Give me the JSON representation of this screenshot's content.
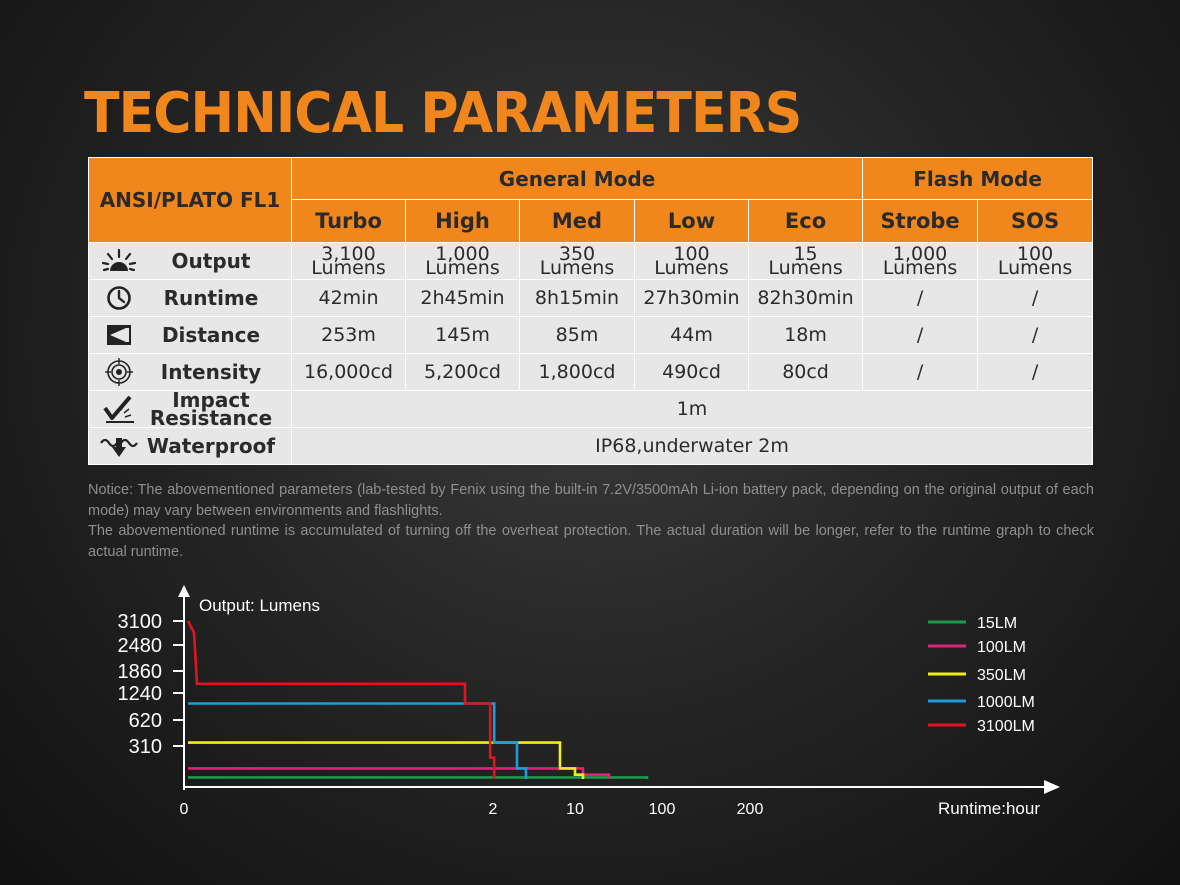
{
  "title": "TECHNICAL PARAMETERS",
  "table": {
    "corner": "ANSI/PLATO FL1",
    "group_general": "General Mode",
    "group_flash": "Flash Mode",
    "modes": [
      "Turbo",
      "High",
      "Med",
      "Low",
      "Eco",
      "Strobe",
      "SOS"
    ],
    "output": {
      "label": "Output",
      "values": [
        [
          "3,100",
          "Lumens"
        ],
        [
          "1,000",
          "Lumens"
        ],
        [
          "350",
          "Lumens"
        ],
        [
          "100",
          "Lumens"
        ],
        [
          "15",
          "Lumens"
        ],
        [
          "1,000",
          "Lumens"
        ],
        [
          "100",
          "Lumens"
        ]
      ]
    },
    "runtime": {
      "label": "Runtime",
      "values": [
        "42min",
        "2h45min",
        "8h15min",
        "27h30min",
        "82h30min",
        "/",
        "/"
      ]
    },
    "distance": {
      "label": "Distance",
      "values": [
        "253m",
        "145m",
        "85m",
        "44m",
        "18m",
        "/",
        "/"
      ]
    },
    "intensity": {
      "label": "Intensity",
      "values": [
        "16,000cd",
        "5,200cd",
        "1,800cd",
        "490cd",
        "80cd",
        "/",
        "/"
      ]
    },
    "impact": {
      "label_line1": "Impact",
      "label_line2": "Resistance",
      "value": "1m"
    },
    "waterproof": {
      "label": "Waterproof",
      "value": "IP68,underwater 2m"
    },
    "icons": {
      "output": "light-burst-icon",
      "runtime": "clock-icon",
      "distance": "beam-distance-icon",
      "intensity": "target-icon",
      "impact": "impact-drop-icon",
      "waterproof": "waterproof-icon"
    }
  },
  "notice": {
    "line1": "Notice: The abovementioned parameters (lab-tested by Fenix using the built-in 7.2V/3500mAh Li-ion battery pack, depending on the original output of each mode) may vary between environments and flashlights.",
    "line2": "The abovementioned runtime is accumulated of turning off the overheat protection. The actual duration will be longer, refer to the runtime graph to check actual runtime."
  },
  "chart_data": {
    "type": "line",
    "ylabel": "Output: Lumens",
    "xlabel": "Runtime:hour",
    "y_ticks": [
      "3100",
      "2480",
      "1860",
      "1240",
      "620",
      "310"
    ],
    "x_ticks": [
      "0",
      "2",
      "10",
      "100",
      "200"
    ],
    "x_scale": "non-linear (ticks 0, 2, 10, 100, 200)",
    "grid": false,
    "legend_position": "right",
    "series": [
      {
        "name": "15LM",
        "color": "#1a9a4a",
        "points": [
          [
            0,
            15
          ],
          [
            82.5,
            15
          ],
          [
            82.5,
            0
          ]
        ]
      },
      {
        "name": "100LM",
        "color": "#e0237a",
        "points": [
          [
            0,
            100
          ],
          [
            11,
            100
          ],
          [
            11,
            40
          ],
          [
            27.5,
            40
          ],
          [
            27.5,
            0
          ]
        ]
      },
      {
        "name": "350LM",
        "color": "#f2ec1c",
        "points": [
          [
            0,
            350
          ],
          [
            8,
            350
          ],
          [
            8,
            100
          ],
          [
            10,
            100
          ],
          [
            10,
            40
          ],
          [
            11,
            40
          ],
          [
            11,
            0
          ]
        ]
      },
      {
        "name": "1000LM",
        "color": "#1f9bd8",
        "points": [
          [
            0,
            1000
          ],
          [
            2.05,
            1000
          ],
          [
            2.05,
            350
          ],
          [
            3,
            350
          ],
          [
            3,
            100
          ],
          [
            4,
            100
          ],
          [
            4,
            0
          ]
        ]
      },
      {
        "name": "3100LM",
        "color": "#e0141e",
        "points": [
          [
            0,
            3100
          ],
          [
            0.1,
            2800
          ],
          [
            0.15,
            1500
          ],
          [
            1.5,
            1500
          ],
          [
            1.5,
            1000
          ],
          [
            1.95,
            1000
          ],
          [
            1.95,
            200
          ],
          [
            2.05,
            200
          ],
          [
            2.05,
            0
          ]
        ]
      }
    ]
  }
}
